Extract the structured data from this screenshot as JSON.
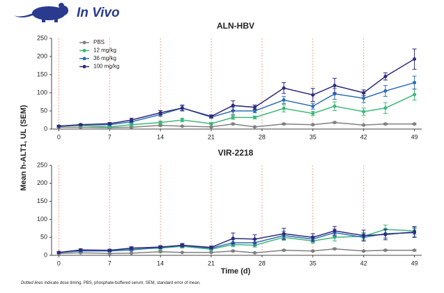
{
  "header": {
    "title": "In Vivo"
  },
  "chart_data": [
    {
      "type": "line",
      "title": "ALN-HBV",
      "ylabel": "Mean h-ALT1, UL (SEM)",
      "legend": true,
      "legend_position": "upper left",
      "x": [
        0,
        3,
        7,
        10,
        14,
        17,
        21,
        24,
        27,
        31,
        35,
        38,
        42,
        45,
        49
      ],
      "xlim": [
        -1,
        50
      ],
      "xticks": [
        0,
        7,
        14,
        21,
        28,
        35,
        42,
        49
      ],
      "ylim": [
        0,
        250
      ],
      "yticks": [
        0,
        50,
        100,
        150,
        200,
        250
      ],
      "dose_days": [
        0,
        7,
        14,
        21,
        28,
        35,
        42
      ],
      "dose_line_color": "#f4a582",
      "series": [
        {
          "name": "PBS",
          "color": "#808080",
          "values": [
            5,
            5,
            4,
            5,
            10,
            8,
            6,
            14,
            6,
            14,
            12,
            18,
            11,
            14,
            14
          ],
          "errors": [
            1,
            1,
            1,
            1,
            2,
            1,
            1,
            2,
            1,
            2,
            1,
            2,
            1,
            2,
            2
          ]
        },
        {
          "name": "12 mg/kg",
          "color": "#3cb878",
          "values": [
            8,
            10,
            6,
            12,
            18,
            25,
            15,
            32,
            32,
            57,
            43,
            63,
            48,
            58,
            95
          ],
          "errors": [
            2,
            2,
            2,
            3,
            4,
            5,
            3,
            5,
            4,
            10,
            6,
            12,
            10,
            15,
            15
          ]
        },
        {
          "name": "36 mg/kg",
          "color": "#2e6db4",
          "values": [
            8,
            12,
            12,
            20,
            40,
            58,
            33,
            50,
            50,
            80,
            63,
            97,
            85,
            105,
            128
          ],
          "errors": [
            2,
            2,
            2,
            3,
            5,
            6,
            3,
            10,
            5,
            10,
            8,
            15,
            12,
            15,
            18
          ]
        },
        {
          "name": "100 mg/kg",
          "color": "#2e2a7a",
          "values": [
            8,
            12,
            15,
            25,
            45,
            58,
            35,
            65,
            60,
            113,
            94,
            120,
            100,
            145,
            193
          ],
          "errors": [
            2,
            2,
            3,
            5,
            6,
            8,
            4,
            13,
            6,
            15,
            18,
            20,
            8,
            10,
            28
          ]
        }
      ]
    },
    {
      "type": "line",
      "title": "VIR-2218",
      "xlabel": "Time (d)",
      "legend": false,
      "x": [
        0,
        3,
        7,
        10,
        14,
        17,
        21,
        24,
        27,
        31,
        35,
        38,
        42,
        45,
        49
      ],
      "xlim": [
        -1,
        50
      ],
      "xticks": [
        0,
        7,
        14,
        21,
        28,
        35,
        42,
        49
      ],
      "ylim": [
        0,
        250
      ],
      "yticks": [
        0,
        50,
        100,
        150,
        200,
        250
      ],
      "dose_days": [
        0,
        7,
        14,
        21,
        28,
        35,
        42
      ],
      "dose_line_color": "#f4a582",
      "series": [
        {
          "name": "PBS",
          "color": "#808080",
          "values": [
            5,
            7,
            5,
            6,
            10,
            8,
            8,
            12,
            7,
            14,
            12,
            18,
            12,
            14,
            14
          ],
          "errors": [
            1,
            1,
            1,
            1,
            2,
            1,
            1,
            2,
            1,
            2,
            1,
            2,
            1,
            2,
            2
          ]
        },
        {
          "name": "12 mg/kg",
          "color": "#3cb878",
          "values": [
            8,
            12,
            13,
            17,
            20,
            25,
            17,
            30,
            28,
            50,
            40,
            50,
            53,
            72,
            68
          ],
          "errors": [
            2,
            2,
            2,
            5,
            5,
            5,
            4,
            6,
            5,
            8,
            6,
            10,
            10,
            12,
            10
          ]
        },
        {
          "name": "36 mg/kg",
          "color": "#2e6db4",
          "values": [
            8,
            12,
            12,
            15,
            22,
            27,
            20,
            35,
            35,
            55,
            45,
            63,
            50,
            60,
            63
          ],
          "errors": [
            2,
            2,
            2,
            3,
            3,
            4,
            3,
            8,
            8,
            12,
            8,
            10,
            10,
            12,
            12
          ]
        },
        {
          "name": "100 mg/kg",
          "color": "#2e2a7a",
          "values": [
            8,
            15,
            14,
            20,
            23,
            28,
            22,
            47,
            45,
            60,
            50,
            68,
            55,
            58,
            65
          ],
          "errors": [
            2,
            3,
            3,
            4,
            4,
            5,
            4,
            15,
            12,
            15,
            10,
            12,
            15,
            15,
            15
          ]
        }
      ]
    }
  ],
  "footnote": {
    "italic": "Dotted lines",
    "text": " indicate dose timing. PBS, phosphate-buffered serum; SEM, standard error of mean."
  }
}
